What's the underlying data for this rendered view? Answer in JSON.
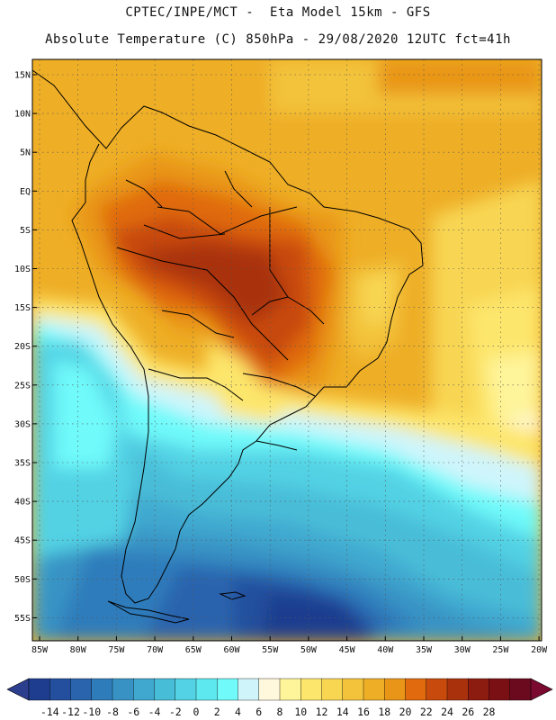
{
  "header": {
    "line1": "CPTEC/INPE/MCT -  Eta Model 15km - GFS",
    "line2": "Absolute Temperature (C) 850hPa - 29/08/2020 12UTC fct=41h"
  },
  "map": {
    "lat_labels": [
      "15N",
      "10N",
      "5N",
      "EQ",
      "5S",
      "10S",
      "15S",
      "20S",
      "25S",
      "30S",
      "35S",
      "40S",
      "45S",
      "50S",
      "55S"
    ],
    "lon_labels": [
      "85W",
      "80W",
      "75W",
      "70W",
      "65W",
      "60W",
      "55W",
      "50W",
      "45W",
      "40W",
      "35W",
      "30W",
      "25W",
      "20W"
    ]
  },
  "colorbar": {
    "labels": [
      "-14",
      "-12",
      "-10",
      "-8",
      "-6",
      "-4",
      "-2",
      "0",
      "2",
      "4",
      "6",
      "8",
      "10",
      "12",
      "14",
      "16",
      "18",
      "20",
      "22",
      "24",
      "26",
      "28"
    ],
    "colors": [
      "#1f3d8f",
      "#234f9e",
      "#2a64ad",
      "#2f7cbb",
      "#3893c4",
      "#40a8cf",
      "#48bdd8",
      "#52d2e4",
      "#5de8ef",
      "#70fafa",
      "#cff5fb",
      "#fff8dc",
      "#fef49a",
      "#fde66c",
      "#f8d652",
      "#f3c33b",
      "#eeae26",
      "#e99618",
      "#e06a0d",
      "#c84a0c",
      "#a9320c",
      "#8c1c10",
      "#7a0f14",
      "#6b0a1f"
    ],
    "low_arrow_color": "#2c3f8f",
    "high_arrow_color": "#7a0a30"
  }
}
